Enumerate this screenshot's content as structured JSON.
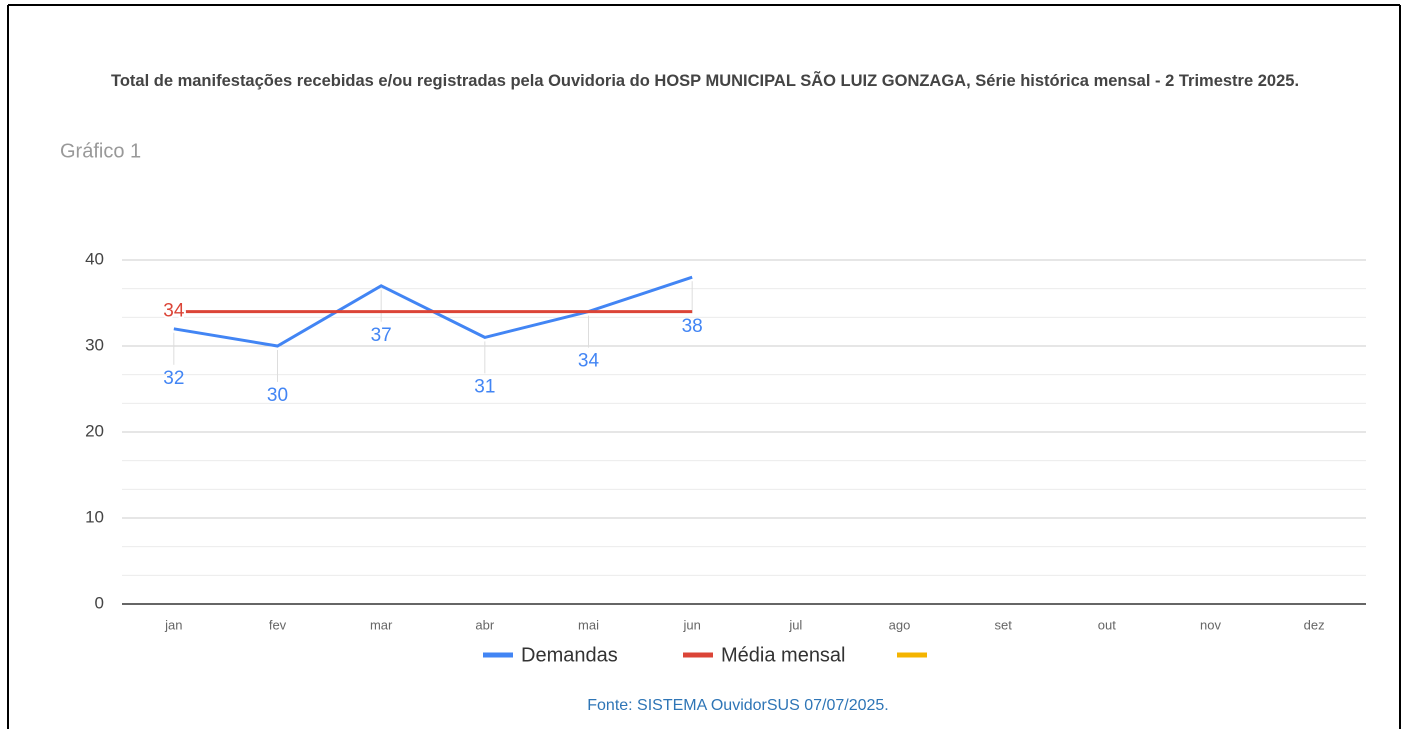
{
  "chart_data": {
    "type": "line",
    "title": "Total de manifestações recebidas e/ou registradas pela Ouvidoria do HOSP MUNICIPAL SÃO LUIZ GONZAGA, Série histórica mensal - 2 Trimestre 2025.",
    "subtitle": "Gráfico 1",
    "categories": [
      "jan",
      "fev",
      "mar",
      "abr",
      "mai",
      "jun",
      "jul",
      "ago",
      "set",
      "out",
      "nov",
      "dez"
    ],
    "series": [
      {
        "name": "Demandas",
        "color": "#4285f4",
        "values": [
          32,
          30,
          37,
          31,
          34,
          38,
          null,
          null,
          null,
          null,
          null,
          null
        ],
        "labeled_points": [
          0,
          1,
          2,
          3,
          4,
          5
        ]
      },
      {
        "name": "Média mensal",
        "color": "#db4437",
        "values": [
          34,
          34,
          34,
          34,
          34,
          34,
          null,
          null,
          null,
          null,
          null,
          null
        ],
        "labeled_points": [
          0
        ]
      },
      {
        "color": "#f4b400",
        "values": [
          null,
          null,
          null,
          null,
          null,
          null,
          null,
          null,
          null,
          null,
          null,
          null
        ]
      }
    ],
    "ylim": [
      0,
      40
    ],
    "yticks": [
      0,
      10,
      20,
      30,
      40
    ],
    "grid": true,
    "minor_grid": 3,
    "legend": "bottom",
    "source": "Fonte: SISTEMA OuvidorSUS 07/07/2025."
  }
}
